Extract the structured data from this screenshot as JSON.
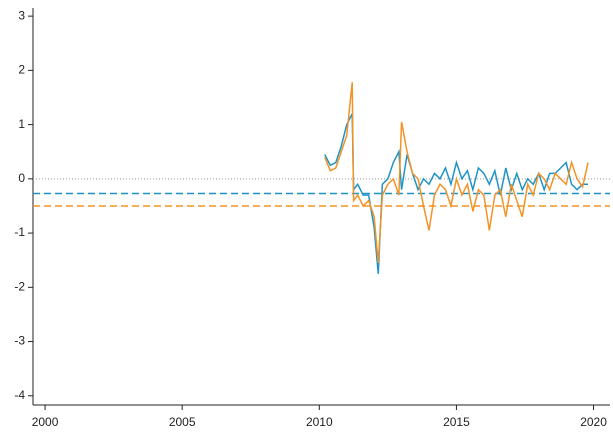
{
  "chart_data": {
    "type": "line",
    "x": [
      2010.2,
      2010.4,
      2010.6,
      2010.8,
      2011.0,
      2011.2,
      2011.25,
      2011.4,
      2011.6,
      2011.8,
      2012.0,
      2012.15,
      2012.3,
      2012.5,
      2012.7,
      2012.9,
      2013.0,
      2013.2,
      2013.4,
      2013.6,
      2013.8,
      2014.0,
      2014.2,
      2014.4,
      2014.6,
      2014.8,
      2015.0,
      2015.2,
      2015.4,
      2015.6,
      2015.8,
      2016.0,
      2016.2,
      2016.4,
      2016.6,
      2016.8,
      2017.0,
      2017.2,
      2017.4,
      2017.6,
      2017.8,
      2018.0,
      2018.2,
      2018.4,
      2018.6,
      2018.8,
      2019.0,
      2019.2,
      2019.4,
      2019.6,
      2019.8
    ],
    "series": [
      {
        "color": "#1f94c4",
        "values": [
          0.45,
          0.25,
          0.3,
          0.6,
          1.0,
          1.2,
          -0.2,
          -0.1,
          -0.3,
          -0.3,
          -0.9,
          -1.75,
          -0.1,
          0.0,
          0.3,
          0.5,
          -0.2,
          0.45,
          0.1,
          -0.2,
          0.0,
          -0.1,
          0.1,
          0.0,
          0.2,
          -0.1,
          0.3,
          0.0,
          0.15,
          -0.2,
          0.2,
          0.1,
          -0.1,
          0.15,
          -0.3,
          0.2,
          -0.2,
          0.1,
          -0.2,
          0.0,
          -0.1,
          0.1,
          -0.2,
          0.1,
          0.1,
          0.2,
          0.3,
          -0.1,
          -0.2,
          -0.1,
          -0.1
        ]
      },
      {
        "color": "#f39325",
        "values": [
          0.4,
          0.15,
          0.2,
          0.5,
          0.8,
          1.78,
          -0.4,
          -0.3,
          -0.5,
          -0.4,
          -0.7,
          -1.55,
          -0.3,
          -0.1,
          0.0,
          -0.3,
          1.05,
          0.5,
          0.1,
          0.0,
          -0.5,
          -0.95,
          -0.3,
          -0.1,
          -0.2,
          -0.5,
          0.0,
          -0.3,
          -0.1,
          -0.6,
          -0.2,
          -0.3,
          -0.95,
          -0.3,
          -0.2,
          -0.7,
          -0.1,
          -0.4,
          -0.7,
          -0.1,
          -0.3,
          0.1,
          0.0,
          -0.2,
          0.1,
          0.0,
          -0.1,
          0.3,
          0.0,
          -0.15,
          0.3
        ]
      }
    ],
    "reference_lines": [
      {
        "value": 0,
        "color": "#999999",
        "style": "dotted"
      },
      {
        "value": -0.27,
        "color": "#1f94c4",
        "style": "dashed"
      },
      {
        "value": -0.5,
        "color": "#f39325",
        "style": "dashed"
      }
    ],
    "xlim": [
      1999.56,
      2020.6
    ],
    "xticks": [
      2000,
      2005,
      2010,
      2015,
      2020
    ],
    "ylim": [
      -4.17,
      3.15
    ],
    "yticks": [
      -4,
      -3,
      -2,
      -1,
      0,
      1,
      2,
      3
    ]
  }
}
